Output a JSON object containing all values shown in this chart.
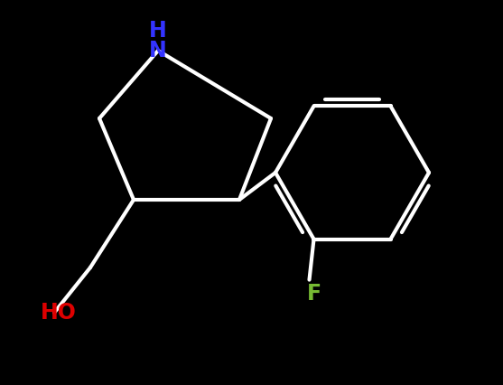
{
  "background_color": "#000000",
  "bond_color": "#ffffff",
  "bond_width": 3.0,
  "figsize": [
    5.57,
    4.26
  ],
  "dpi": 100,
  "label_HN": {
    "text": "HN",
    "color": "#3333ff",
    "fontsize": 17
  },
  "label_HO": {
    "text": "HO",
    "color": "#dd0000",
    "fontsize": 17
  },
  "label_F": {
    "text": "F",
    "color": "#77bb33",
    "fontsize": 17
  },
  "xlim": [
    0,
    557
  ],
  "ylim": [
    0,
    426
  ]
}
